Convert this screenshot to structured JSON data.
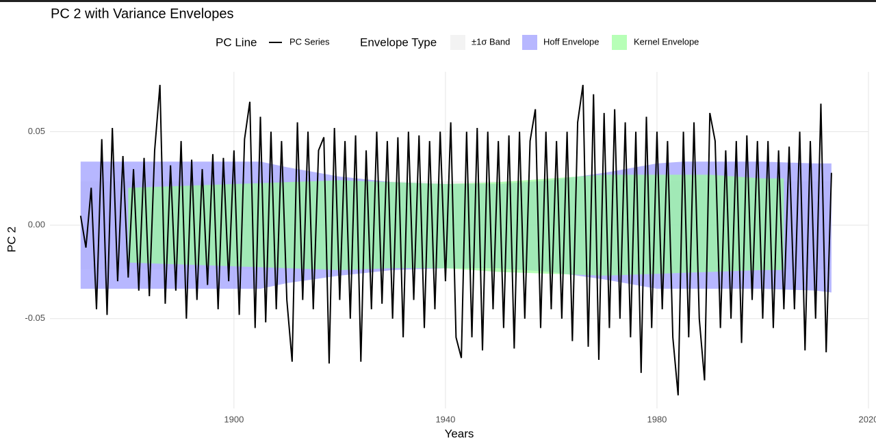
{
  "chart_data": {
    "type": "line",
    "title": "PC 2 with Variance Envelopes",
    "x_label": "Years",
    "y_label": "PC 2",
    "xlim": [
      1865.2,
      2020
    ],
    "xticks": [
      1900,
      1940,
      1980,
      2020
    ],
    "ylim": [
      -0.098,
      0.082
    ],
    "yticks": [
      {
        "value": 0.05,
        "label": "0.05"
      },
      {
        "value": 0,
        "label": "0.00"
      },
      {
        "value": -0.05,
        "label": "-0.05"
      }
    ],
    "grid": true,
    "line_legend_title": "PC Line",
    "band_legend_title": "Envelope Type",
    "series": [
      {
        "name": "PC Series",
        "color": "#000000",
        "x": [
          1871,
          1872,
          1873,
          1874,
          1875,
          1876,
          1877,
          1878,
          1879,
          1880,
          1881,
          1882,
          1883,
          1884,
          1885,
          1886,
          1887,
          1888,
          1889,
          1890,
          1891,
          1892,
          1893,
          1894,
          1895,
          1896,
          1897,
          1898,
          1899,
          1900,
          1901,
          1902,
          1903,
          1904,
          1905,
          1906,
          1907,
          1908,
          1909,
          1910,
          1911,
          1912,
          1913,
          1914,
          1915,
          1916,
          1917,
          1918,
          1919,
          1920,
          1921,
          1922,
          1923,
          1924,
          1925,
          1926,
          1927,
          1928,
          1929,
          1930,
          1931,
          1932,
          1933,
          1934,
          1935,
          1936,
          1937,
          1938,
          1939,
          1940,
          1941,
          1942,
          1943,
          1944,
          1945,
          1946,
          1947,
          1948,
          1949,
          1950,
          1951,
          1952,
          1953,
          1954,
          1955,
          1956,
          1957,
          1958,
          1959,
          1960,
          1961,
          1962,
          1963,
          1964,
          1965,
          1966,
          1967,
          1968,
          1969,
          1970,
          1971,
          1972,
          1973,
          1974,
          1975,
          1976,
          1977,
          1978,
          1979,
          1980,
          1981,
          1982,
          1983,
          1984,
          1985,
          1986,
          1987,
          1988,
          1989,
          1990,
          1991,
          1992,
          1993,
          1994,
          1995,
          1996,
          1997,
          1998,
          1999,
          2000,
          2001,
          2002,
          2003,
          2004,
          2005,
          2006,
          2007,
          2008,
          2009,
          2010,
          2011,
          2012,
          2013
        ],
        "values": [
          0.005,
          -0.012,
          0.02,
          -0.045,
          0.046,
          -0.048,
          0.052,
          -0.03,
          0.037,
          -0.028,
          0.03,
          -0.035,
          0.036,
          -0.038,
          0.04,
          0.075,
          -0.042,
          0.032,
          -0.035,
          0.045,
          -0.05,
          0.035,
          -0.04,
          0.03,
          -0.032,
          0.038,
          -0.045,
          0.036,
          -0.03,
          0.04,
          -0.048,
          0.046,
          0.066,
          -0.055,
          0.058,
          -0.052,
          0.05,
          -0.045,
          0.045,
          -0.04,
          -0.073,
          0.055,
          -0.04,
          0.05,
          -0.045,
          0.04,
          0.047,
          -0.074,
          0.052,
          -0.04,
          0.045,
          -0.05,
          0.048,
          -0.073,
          0.04,
          -0.045,
          0.05,
          -0.042,
          0.045,
          -0.05,
          0.047,
          -0.06,
          0.05,
          -0.04,
          0.048,
          -0.055,
          0.045,
          -0.045,
          0.05,
          -0.03,
          0.055,
          -0.06,
          -0.071,
          0.05,
          -0.06,
          0.052,
          -0.067,
          0.05,
          -0.045,
          0.045,
          -0.055,
          0.048,
          -0.066,
          0.05,
          -0.05,
          0.045,
          0.062,
          -0.055,
          0.05,
          -0.045,
          0.045,
          -0.05,
          0.05,
          -0.062,
          0.055,
          0.075,
          -0.065,
          0.07,
          -0.072,
          0.06,
          -0.055,
          0.062,
          -0.05,
          0.055,
          -0.06,
          0.05,
          -0.079,
          0.058,
          -0.055,
          0.05,
          -0.045,
          0.045,
          -0.06,
          -0.091,
          0.05,
          -0.06,
          0.055,
          -0.05,
          -0.083,
          0.06,
          0.045,
          -0.055,
          0.04,
          -0.05,
          0.045,
          -0.063,
          0.048,
          -0.04,
          0.045,
          -0.05,
          0.045,
          -0.055,
          0.04,
          -0.045,
          0.042,
          -0.045,
          0.05,
          -0.067,
          0.045,
          -0.05,
          0.065,
          -0.068,
          0.028
        ]
      }
    ],
    "bands": [
      {
        "name": "±1σ Band",
        "color": "#eeeeee",
        "x": [
          1871,
          2013
        ],
        "upper": [
          0.0235,
          0.0235
        ],
        "lower": [
          -0.0235,
          -0.0235
        ]
      },
      {
        "name": "Hoff Envelope",
        "color": "#9999ff",
        "x": [
          1871,
          1880,
          1890,
          1900,
          1905,
          1910,
          1920,
          1930,
          1940,
          1950,
          1960,
          1970,
          1980,
          1985,
          1990,
          2000,
          2010,
          2013
        ],
        "upper": [
          0.034,
          0.034,
          0.034,
          0.034,
          0.034,
          0.031,
          0.026,
          0.023,
          0.022,
          0.022,
          0.024,
          0.028,
          0.033,
          0.034,
          0.034,
          0.034,
          0.033,
          0.033
        ],
        "lower": [
          -0.034,
          -0.034,
          -0.034,
          -0.034,
          -0.034,
          -0.031,
          -0.027,
          -0.024,
          -0.023,
          -0.023,
          -0.025,
          -0.029,
          -0.034,
          -0.034,
          -0.034,
          -0.034,
          -0.035,
          -0.036
        ]
      },
      {
        "name": "Kernel Envelope",
        "color": "#99ff99",
        "x": [
          1880,
          1890,
          1900,
          1910,
          1920,
          1930,
          1940,
          1950,
          1960,
          1970,
          1980,
          1990,
          2000,
          2004
        ],
        "upper": [
          0.02,
          0.021,
          0.022,
          0.023,
          0.024,
          0.023,
          0.022,
          0.023,
          0.025,
          0.027,
          0.027,
          0.027,
          0.025,
          0.025
        ],
        "lower": [
          -0.02,
          -0.021,
          -0.022,
          -0.023,
          -0.024,
          -0.023,
          -0.023,
          -0.025,
          -0.026,
          -0.027,
          -0.026,
          -0.025,
          -0.024,
          -0.024
        ]
      }
    ]
  }
}
